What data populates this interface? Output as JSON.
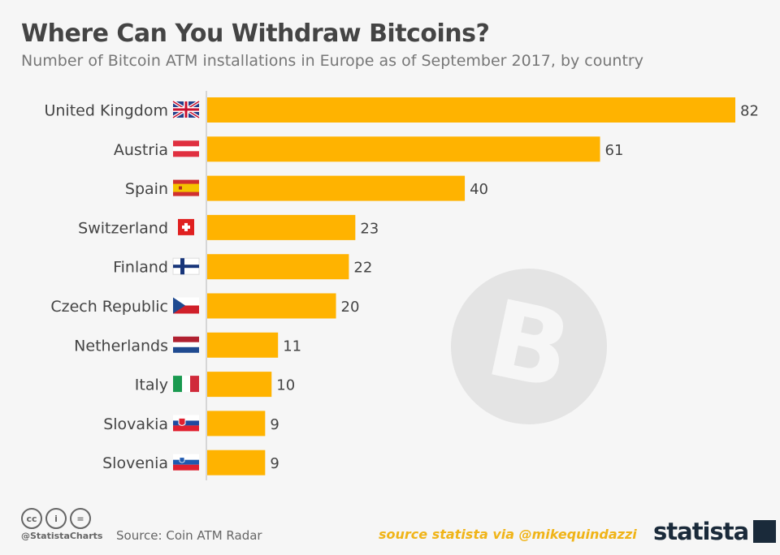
{
  "title": "Where Can You Withdraw Bitcoins?",
  "subtitle": "Number of Bitcoin ATM installations in Europe as of September 2017, by country",
  "chart_data": {
    "type": "bar",
    "orientation": "horizontal",
    "title": "Where Can You Withdraw Bitcoins?",
    "categories": [
      "United Kingdom",
      "Austria",
      "Spain",
      "Switzerland",
      "Finland",
      "Czech Republic",
      "Netherlands",
      "Italy",
      "Slovakia",
      "Slovenia"
    ],
    "flags": [
      "gb",
      "at",
      "es",
      "ch",
      "fi",
      "cz",
      "nl",
      "it",
      "sk",
      "si"
    ],
    "values": [
      82,
      61,
      40,
      23,
      22,
      20,
      11,
      10,
      9,
      9
    ],
    "xlim": [
      0,
      82
    ],
    "grid": false,
    "bar_color": "#ffb300"
  },
  "footer": {
    "cc_icons": [
      "cc",
      "by",
      "="
    ],
    "handle": "@StatistaCharts",
    "source": "Source: Coin ATM Radar",
    "credit": "source statista via @mikequindazzi",
    "brand": "statista"
  }
}
